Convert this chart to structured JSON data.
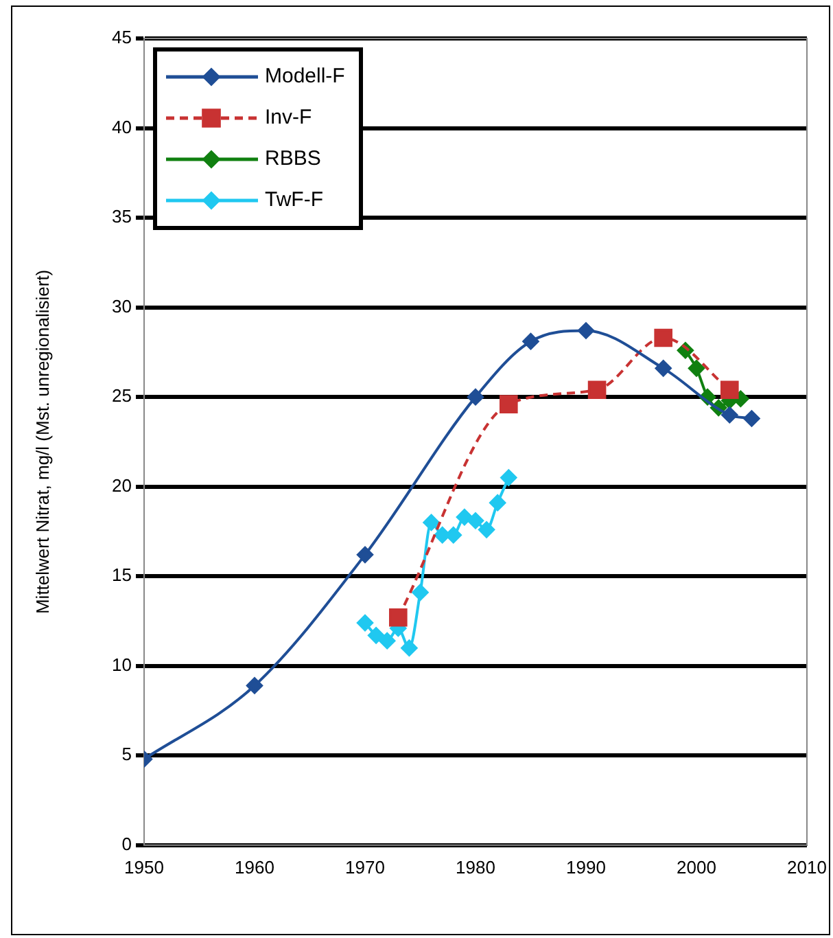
{
  "chart_data": {
    "type": "line",
    "ylabel": "Mittelwert Nitrat, mg/l (Mst. unregionalisiert)",
    "xlim": [
      1950,
      2010
    ],
    "xticks": [
      1950,
      1960,
      1970,
      1980,
      1990,
      2000,
      2010
    ],
    "ylim": [
      0,
      45
    ],
    "yticks": [
      0,
      5,
      10,
      15,
      20,
      25,
      30,
      35,
      40,
      45
    ],
    "grid": "y",
    "legend": "top left",
    "series": [
      {
        "name": "Modell-F",
        "color": "#1f4e96",
        "marker": "diamond",
        "line_style": "solid",
        "x": [
          1950,
          1960,
          1970,
          1980,
          1985,
          1990,
          1997,
          2003,
          2005
        ],
        "values": [
          4.8,
          8.9,
          16.2,
          25.0,
          28.1,
          28.7,
          26.6,
          24.0,
          23.8
        ]
      },
      {
        "name": "Inv-F",
        "color": "#c83232",
        "marker": "square",
        "line_style": "dashed",
        "x": [
          1973,
          1983,
          1991,
          1997,
          2003
        ],
        "values": [
          12.7,
          24.6,
          25.4,
          28.3,
          25.4
        ]
      },
      {
        "name": "RBBS",
        "color": "#108010",
        "marker": "diamond",
        "line_style": "solid",
        "x": [
          1999,
          2000,
          2001,
          2002,
          2003,
          2004
        ],
        "values": [
          27.6,
          26.6,
          25.0,
          24.4,
          24.8,
          24.9
        ]
      },
      {
        "name": "TwF-F",
        "color": "#20c8f0",
        "marker": "diamond",
        "line_style": "solid",
        "x": [
          1970,
          1971,
          1972,
          1973,
          1974,
          1975,
          1976,
          1977,
          1978,
          1979,
          1980,
          1981,
          1982,
          1983
        ],
        "values": [
          12.4,
          11.7,
          11.4,
          12.1,
          11.0,
          14.1,
          18.0,
          17.3,
          17.3,
          18.3,
          18.1,
          17.6,
          19.1,
          20.5
        ]
      }
    ]
  }
}
